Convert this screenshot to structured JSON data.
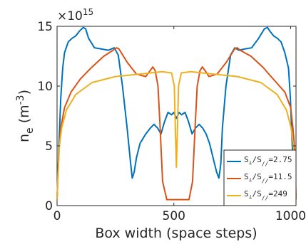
{
  "chart_data": {
    "type": "line",
    "xlabel": "Box width (space steps)",
    "ylabel": "n",
    "ylabel_subscript": "e",
    "ylabel_units_prefix": " (m",
    "ylabel_units_exponent": "-3",
    "ylabel_units_suffix": ")",
    "y_exponent_base": "×10",
    "y_exponent_power": "15",
    "xlim": [
      0,
      1023
    ],
    "ylim": [
      0,
      15
    ],
    "x_ticks": [
      0,
      500,
      1000
    ],
    "x_tick_labels": [
      "0",
      "500",
      "1000"
    ],
    "y_ticks": [
      0,
      5,
      10,
      15
    ],
    "y_tick_labels": [
      "0",
      "5",
      "10",
      "15"
    ],
    "grid": false,
    "legend_position": "bottom-right",
    "series": [
      {
        "name": "S⊥/S//=2.75",
        "label_parts": [
          "S",
          "⊥",
          "/S",
          "//",
          "=2.75"
        ],
        "color": "#0072BD",
        "x": [
          0,
          8,
          16,
          24,
          32,
          48,
          64,
          80,
          96,
          112,
          122,
          135,
          160,
          190,
          220,
          245,
          262,
          280,
          300,
          315,
          322,
          330,
          340,
          355,
          380,
          400,
          415,
          430,
          445,
          460,
          475,
          490,
          500,
          511,
          522,
          533,
          548,
          563,
          578,
          593,
          608,
          623,
          638,
          653,
          668,
          683,
          693,
          701,
          708,
          723,
          743,
          761,
          778,
          803,
          833,
          863,
          888,
          901,
          911,
          927,
          943,
          959,
          975,
          991,
          999,
          1007,
          1015,
          1023
        ],
        "y": [
          0.5,
          5.0,
          9.0,
          11.5,
          12.8,
          13.7,
          14.0,
          14.2,
          14.6,
          14.9,
          14.8,
          14.0,
          13.2,
          13.1,
          13.0,
          13.2,
          12.6,
          10.0,
          6.5,
          3.5,
          2.3,
          2.8,
          4.0,
          5.2,
          6.0,
          6.5,
          6.8,
          6.5,
          6.0,
          7.0,
          7.8,
          7.6,
          7.8,
          7.3,
          7.8,
          7.6,
          7.8,
          7.0,
          6.0,
          6.5,
          6.8,
          6.5,
          6.0,
          5.2,
          4.0,
          2.8,
          2.3,
          3.5,
          6.5,
          10.0,
          12.6,
          13.2,
          13.0,
          13.1,
          13.2,
          14.0,
          14.8,
          14.9,
          14.6,
          14.2,
          14.0,
          13.7,
          12.8,
          11.5,
          9.0,
          5.0,
          0.5,
          0.5
        ]
      },
      {
        "name": "S⊥/S//=11.5",
        "label_parts": [
          "S",
          "⊥",
          "/S",
          "//",
          "=11.5"
        ],
        "color": "#D95319",
        "x": [
          0,
          8,
          16,
          32,
          60,
          100,
          150,
          200,
          240,
          255,
          265,
          300,
          340,
          380,
          395,
          410,
          420,
          432,
          440,
          452,
          470,
          500,
          540,
          565,
          580,
          592,
          600,
          612,
          622,
          637,
          650,
          685,
          725,
          760,
          771,
          784,
          830,
          880,
          925,
          975,
          1000,
          1010,
          1018,
          1023
        ],
        "y": [
          0.5,
          4.5,
          6.5,
          8.2,
          9.5,
          10.6,
          11.6,
          12.5,
          13.0,
          13.2,
          13.1,
          12.0,
          11.0,
          10.8,
          11.2,
          11.6,
          11.3,
          10.0,
          7.0,
          2.0,
          0.5,
          0.5,
          0.5,
          0.5,
          2.0,
          7.0,
          10.0,
          11.3,
          11.6,
          11.2,
          10.8,
          11.0,
          12.0,
          13.1,
          13.2,
          13.0,
          12.5,
          11.6,
          10.6,
          9.5,
          8.2,
          6.5,
          4.5,
          0.5
        ]
      },
      {
        "name": "S⊥/S//=249",
        "label_parts": [
          "S",
          "⊥",
          "/S",
          "//",
          "=249"
        ],
        "color": "#EDB120",
        "x": [
          0,
          5,
          10,
          20,
          40,
          80,
          150,
          250,
          350,
          450,
          490,
          502,
          507,
          511,
          515,
          520,
          532,
          572,
          672,
          772,
          872,
          942,
          982,
          1002,
          1012,
          1017,
          1023
        ],
        "y": [
          0.5,
          3.0,
          5.0,
          6.5,
          8.0,
          9.3,
          10.3,
          10.8,
          11.0,
          11.2,
          11.1,
          10.0,
          6.0,
          3.2,
          6.0,
          10.0,
          11.1,
          11.2,
          11.0,
          10.8,
          10.3,
          9.3,
          8.0,
          6.5,
          5.0,
          3.0,
          0.5
        ]
      }
    ]
  }
}
